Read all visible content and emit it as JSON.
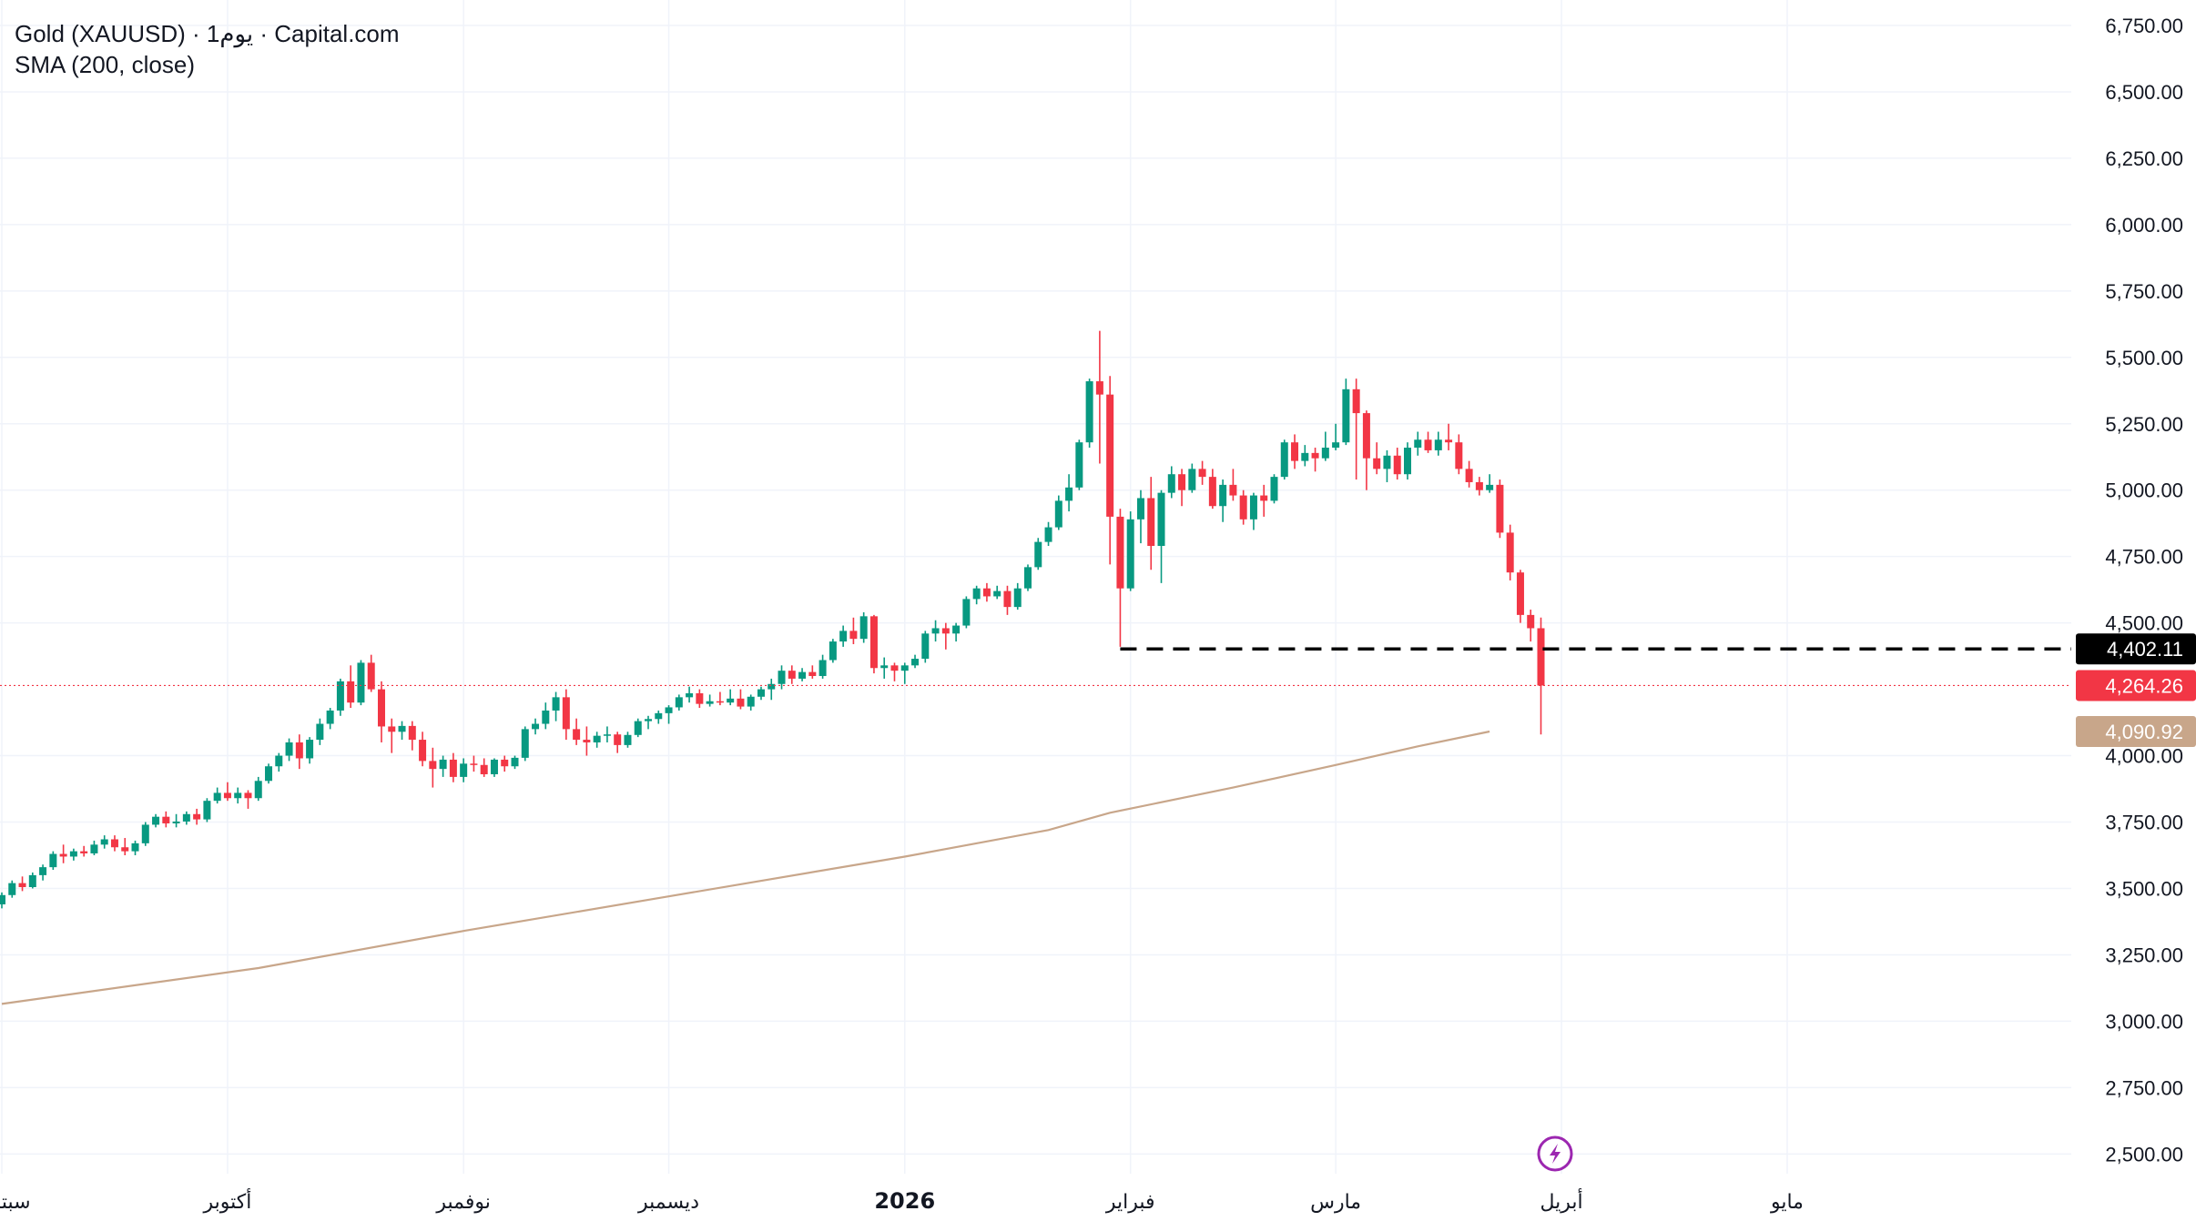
{
  "legend": {
    "title": "Gold (XAUUSD) · 1يوم · Capital.com",
    "indicator": "SMA (200, close)"
  },
  "colors": {
    "up": "#089981",
    "down": "#f23645",
    "sma": "#c8a68a",
    "grid": "#f0f3fa",
    "price_line": "#f23645",
    "dashed_line": "#000000"
  },
  "icons": {
    "event": "lightning-icon"
  },
  "chart_data": {
    "type": "candlestick",
    "y_ticks": [
      "6,750.00",
      "6,500.00",
      "6,250.00",
      "6,000.00",
      "5,750.00",
      "5,500.00",
      "5,250.00",
      "5,000.00",
      "4,750.00",
      "4,500.00",
      "4,000.00",
      "3,750.00",
      "3,500.00",
      "3,250.00",
      "3,000.00",
      "2,750.00",
      "2,500.00"
    ],
    "ylim": [
      2450,
      6820
    ],
    "x_labels": [
      {
        "text": "سبتمبر",
        "index": 0,
        "bold": false
      },
      {
        "text": "أكتوبر",
        "index": 22,
        "bold": false
      },
      {
        "text": "نوفمبر",
        "index": 45,
        "bold": false
      },
      {
        "text": "ديسمبر",
        "index": 65,
        "bold": false
      },
      {
        "text": "2026",
        "index": 88,
        "bold": true
      },
      {
        "text": "فبراير",
        "index": 110,
        "bold": false
      },
      {
        "text": "مارس",
        "index": 130,
        "bold": false
      },
      {
        "text": "أبريل",
        "index": 152,
        "bold": false
      },
      {
        "text": "مايو",
        "index": 174,
        "bold": false
      }
    ],
    "badges": {
      "dashed_level": "4,402.11",
      "last_price": "4,264.26",
      "sma_value": "4,090.92"
    },
    "dashed_level_value": 4402.11,
    "dashed_level_from_index": 109,
    "last_price_value": 4264.26,
    "sma_last_value": 4090.92,
    "sma": [
      {
        "x": 0,
        "y": 3065
      },
      {
        "x": 25,
        "y": 3200
      },
      {
        "x": 45,
        "y": 3340
      },
      {
        "x": 65,
        "y": 3470
      },
      {
        "x": 88,
        "y": 3620
      },
      {
        "x": 102,
        "y": 3720
      },
      {
        "x": 108,
        "y": 3785
      },
      {
        "x": 120,
        "y": 3880
      },
      {
        "x": 130,
        "y": 3965
      },
      {
        "x": 138,
        "y": 4035
      },
      {
        "x": 145,
        "y": 4090.92
      }
    ],
    "ohlc": [
      [
        3440,
        3485,
        3425,
        3475
      ],
      [
        3475,
        3530,
        3465,
        3520
      ],
      [
        3520,
        3545,
        3490,
        3505
      ],
      [
        3505,
        3560,
        3500,
        3550
      ],
      [
        3550,
        3590,
        3530,
        3580
      ],
      [
        3580,
        3640,
        3570,
        3630
      ],
      [
        3630,
        3665,
        3595,
        3620
      ],
      [
        3620,
        3650,
        3605,
        3640
      ],
      [
        3640,
        3660,
        3620,
        3632
      ],
      [
        3632,
        3680,
        3625,
        3665
      ],
      [
        3665,
        3700,
        3650,
        3685
      ],
      [
        3685,
        3700,
        3640,
        3655
      ],
      [
        3655,
        3690,
        3625,
        3640
      ],
      [
        3640,
        3680,
        3625,
        3670
      ],
      [
        3670,
        3750,
        3660,
        3740
      ],
      [
        3740,
        3780,
        3730,
        3770
      ],
      [
        3770,
        3790,
        3730,
        3745
      ],
      [
        3745,
        3780,
        3730,
        3752
      ],
      [
        3752,
        3790,
        3740,
        3780
      ],
      [
        3780,
        3800,
        3740,
        3760
      ],
      [
        3760,
        3840,
        3750,
        3830
      ],
      [
        3830,
        3880,
        3820,
        3860
      ],
      [
        3860,
        3900,
        3830,
        3840
      ],
      [
        3840,
        3880,
        3820,
        3860
      ],
      [
        3860,
        3870,
        3800,
        3840
      ],
      [
        3840,
        3920,
        3830,
        3905
      ],
      [
        3905,
        3970,
        3895,
        3960
      ],
      [
        3960,
        4010,
        3940,
        4000
      ],
      [
        4000,
        4065,
        3980,
        4050
      ],
      [
        4050,
        4080,
        3950,
        3990
      ],
      [
        3990,
        4070,
        3970,
        4060
      ],
      [
        4060,
        4140,
        4040,
        4120
      ],
      [
        4120,
        4180,
        4100,
        4170
      ],
      [
        4170,
        4290,
        4150,
        4280
      ],
      [
        4280,
        4340,
        4180,
        4200
      ],
      [
        4200,
        4360,
        4190,
        4350
      ],
      [
        4350,
        4380,
        4240,
        4250
      ],
      [
        4250,
        4280,
        4050,
        4110
      ],
      [
        4110,
        4140,
        4010,
        4090
      ],
      [
        4090,
        4130,
        4060,
        4112
      ],
      [
        4112,
        4130,
        4020,
        4060
      ],
      [
        4060,
        4090,
        3960,
        3980
      ],
      [
        3980,
        4030,
        3880,
        3950
      ],
      [
        3950,
        4000,
        3920,
        3985
      ],
      [
        3985,
        4010,
        3900,
        3920
      ],
      [
        3920,
        3990,
        3900,
        3970
      ],
      [
        3970,
        4000,
        3940,
        3965
      ],
      [
        3965,
        3990,
        3920,
        3930
      ],
      [
        3930,
        3990,
        3920,
        3985
      ],
      [
        3985,
        4000,
        3940,
        3960
      ],
      [
        3960,
        4000,
        3950,
        3992
      ],
      [
        3992,
        4110,
        3980,
        4100
      ],
      [
        4100,
        4140,
        4080,
        4120
      ],
      [
        4120,
        4200,
        4100,
        4170
      ],
      [
        4170,
        4240,
        4130,
        4220
      ],
      [
        4220,
        4250,
        4060,
        4100
      ],
      [
        4100,
        4140,
        4040,
        4060
      ],
      [
        4060,
        4110,
        4000,
        4050
      ],
      [
        4050,
        4090,
        4030,
        4075
      ],
      [
        4075,
        4110,
        4050,
        4080
      ],
      [
        4080,
        4090,
        4010,
        4040
      ],
      [
        4040,
        4090,
        4030,
        4078
      ],
      [
        4078,
        4140,
        4070,
        4130
      ],
      [
        4130,
        4150,
        4100,
        4138
      ],
      [
        4138,
        4170,
        4120,
        4160
      ],
      [
        4160,
        4190,
        4120,
        4182
      ],
      [
        4182,
        4230,
        4170,
        4220
      ],
      [
        4220,
        4260,
        4200,
        4235
      ],
      [
        4235,
        4250,
        4180,
        4195
      ],
      [
        4195,
        4230,
        4185,
        4205
      ],
      [
        4205,
        4240,
        4190,
        4200
      ],
      [
        4200,
        4250,
        4190,
        4215
      ],
      [
        4215,
        4250,
        4175,
        4185
      ],
      [
        4185,
        4230,
        4170,
        4222
      ],
      [
        4222,
        4260,
        4210,
        4250
      ],
      [
        4250,
        4290,
        4210,
        4270
      ],
      [
        4270,
        4340,
        4250,
        4320
      ],
      [
        4320,
        4340,
        4270,
        4290
      ],
      [
        4290,
        4330,
        4280,
        4315
      ],
      [
        4315,
        4340,
        4290,
        4300
      ],
      [
        4300,
        4380,
        4290,
        4360
      ],
      [
        4360,
        4440,
        4350,
        4430
      ],
      [
        4430,
        4490,
        4410,
        4470
      ],
      [
        4470,
        4520,
        4420,
        4440
      ],
      [
        4440,
        4540,
        4425,
        4525
      ],
      [
        4525,
        4530,
        4310,
        4330
      ],
      [
        4330,
        4370,
        4290,
        4340
      ],
      [
        4340,
        4350,
        4280,
        4320
      ],
      [
        4320,
        4350,
        4270,
        4340
      ],
      [
        4340,
        4380,
        4330,
        4365
      ],
      [
        4365,
        4470,
        4350,
        4460
      ],
      [
        4460,
        4510,
        4430,
        4480
      ],
      [
        4480,
        4500,
        4400,
        4460
      ],
      [
        4460,
        4500,
        4430,
        4490
      ],
      [
        4490,
        4600,
        4480,
        4590
      ],
      [
        4590,
        4640,
        4570,
        4630
      ],
      [
        4630,
        4650,
        4580,
        4600
      ],
      [
        4600,
        4640,
        4590,
        4620
      ],
      [
        4620,
        4640,
        4530,
        4560
      ],
      [
        4560,
        4650,
        4550,
        4630
      ],
      [
        4630,
        4720,
        4620,
        4710
      ],
      [
        4710,
        4820,
        4700,
        4805
      ],
      [
        4805,
        4880,
        4790,
        4860
      ],
      [
        4860,
        4980,
        4850,
        4960
      ],
      [
        4960,
        5060,
        4920,
        5010
      ],
      [
        5010,
        5190,
        5000,
        5180
      ],
      [
        5180,
        5420,
        5160,
        5410
      ],
      [
        5410,
        5600,
        5100,
        5360
      ],
      [
        5360,
        5430,
        4720,
        4900
      ],
      [
        4900,
        4930,
        4410,
        4630
      ],
      [
        4630,
        4920,
        4620,
        4890
      ],
      [
        4890,
        5000,
        4800,
        4970
      ],
      [
        4970,
        5050,
        4700,
        4790
      ],
      [
        4790,
        5000,
        4650,
        4990
      ],
      [
        4990,
        5090,
        4970,
        5060
      ],
      [
        5060,
        5080,
        4940,
        5000
      ],
      [
        5000,
        5100,
        4990,
        5080
      ],
      [
        5080,
        5110,
        5020,
        5050
      ],
      [
        5050,
        5080,
        4930,
        4940
      ],
      [
        4940,
        5040,
        4880,
        5020
      ],
      [
        5020,
        5080,
        4960,
        4980
      ],
      [
        4980,
        5000,
        4870,
        4890
      ],
      [
        4890,
        4990,
        4850,
        4980
      ],
      [
        4980,
        5020,
        4900,
        4960
      ],
      [
        4960,
        5060,
        4950,
        5050
      ],
      [
        5050,
        5190,
        5040,
        5180
      ],
      [
        5180,
        5210,
        5080,
        5110
      ],
      [
        5110,
        5170,
        5090,
        5140
      ],
      [
        5140,
        5160,
        5070,
        5120
      ],
      [
        5120,
        5220,
        5110,
        5160
      ],
      [
        5160,
        5250,
        5150,
        5180
      ],
      [
        5180,
        5420,
        5170,
        5380
      ],
      [
        5380,
        5420,
        5040,
        5290
      ],
      [
        5290,
        5300,
        5000,
        5120
      ],
      [
        5120,
        5180,
        5060,
        5080
      ],
      [
        5080,
        5150,
        5030,
        5130
      ],
      [
        5130,
        5160,
        5040,
        5060
      ],
      [
        5060,
        5180,
        5040,
        5160
      ],
      [
        5160,
        5220,
        5130,
        5190
      ],
      [
        5190,
        5220,
        5140,
        5150
      ],
      [
        5150,
        5220,
        5130,
        5190
      ],
      [
        5190,
        5250,
        5150,
        5180
      ],
      [
        5180,
        5210,
        5060,
        5080
      ],
      [
        5080,
        5110,
        5010,
        5030
      ],
      [
        5030,
        5050,
        4980,
        5000
      ],
      [
        5000,
        5060,
        4990,
        5020
      ],
      [
        5020,
        5040,
        4820,
        4840
      ],
      [
        4840,
        4870,
        4660,
        4690
      ],
      [
        4690,
        4700,
        4500,
        4530
      ],
      [
        4530,
        4550,
        4430,
        4480
      ],
      [
        4480,
        4520,
        4080,
        4264.26
      ]
    ]
  }
}
